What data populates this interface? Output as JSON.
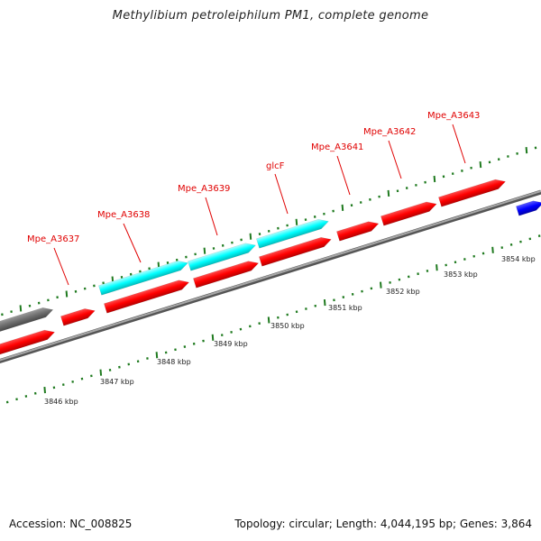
{
  "title": "Methylibium petroleiphilum PM1, complete genome",
  "footer": {
    "accession": "Accession: NC_008825",
    "summary": "Topology: circular; Length: 4,044,195 bp; Genes: 3,864"
  },
  "colors": {
    "gene_red": "#ff0000",
    "gene_cyan": "#00ffff",
    "gene_gray": "#707070",
    "gene_blue": "#0000ff",
    "backbone": "#7a7a7a",
    "tick": "#1f7a1f",
    "label": "#e00000"
  },
  "scale": {
    "unit": "kbp",
    "labels": [
      "3846 kbp",
      "3847 kbp",
      "3848 kbp",
      "3849 kbp",
      "3850 kbp",
      "3851 kbp",
      "3852 kbp",
      "3853 kbp",
      "3854 kbp"
    ]
  },
  "genes": [
    {
      "name": "",
      "color": "gene_gray",
      "strand": "+"
    },
    {
      "name": "Mpe_A3637",
      "color": "gene_red",
      "strand": "+"
    },
    {
      "name": "Mpe_A3638",
      "color": "gene_cyan",
      "strand": "+"
    },
    {
      "name": "Mpe_A3639",
      "color": "gene_cyan",
      "strand": "+"
    },
    {
      "name": "glcF",
      "color": "gene_cyan",
      "strand": "+"
    },
    {
      "name": "Mpe_A3641",
      "color": "gene_red",
      "strand": "+"
    },
    {
      "name": "Mpe_A3642",
      "color": "gene_red",
      "strand": "+"
    },
    {
      "name": "Mpe_A3643",
      "color": "gene_red",
      "strand": "+"
    },
    {
      "name": "",
      "color": "gene_red",
      "strand": "-"
    },
    {
      "name": "",
      "color": "gene_red",
      "strand": "-"
    },
    {
      "name": "",
      "color": "gene_red",
      "strand": "-"
    },
    {
      "name": "",
      "color": "gene_blue",
      "strand": "-"
    }
  ]
}
